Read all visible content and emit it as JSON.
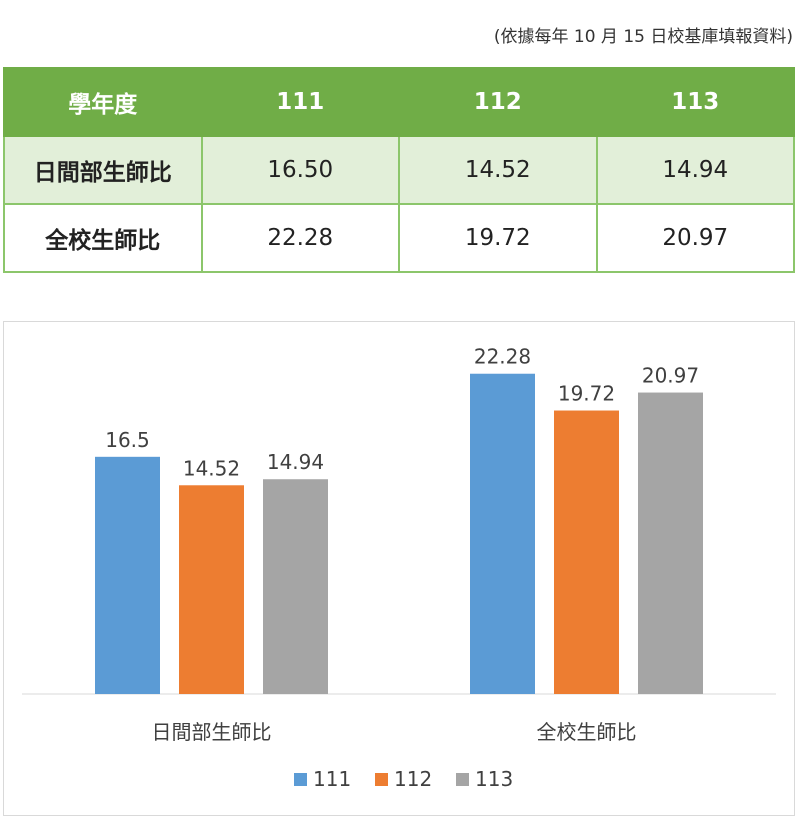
{
  "note": "(依據每年 10 月 15 日校基庫填報資料)",
  "table": {
    "header": [
      "學年度",
      "111",
      "112",
      "113"
    ],
    "rows": [
      {
        "label": "日間部生師比",
        "values": [
          "16.50",
          "14.52",
          "14.94"
        ]
      },
      {
        "label": "全校生師比",
        "values": [
          "22.28",
          "19.72",
          "20.97"
        ]
      }
    ]
  },
  "chart_data": {
    "type": "bar",
    "categories": [
      "日間部生師比",
      "全校生師比"
    ],
    "series": [
      {
        "name": "111",
        "values": [
          16.5,
          22.28
        ],
        "color": "#5b9bd5"
      },
      {
        "name": "112",
        "values": [
          14.52,
          19.72
        ],
        "color": "#ed7d31"
      },
      {
        "name": "113",
        "values": [
          14.94,
          20.97
        ],
        "color": "#a5a5a5"
      }
    ],
    "data_labels": [
      [
        "16.5",
        "22.28"
      ],
      [
        "14.52",
        "19.72"
      ],
      [
        "14.94",
        "20.97"
      ]
    ],
    "ylim": [
      0,
      24
    ],
    "grid": false,
    "legend": "bottom"
  }
}
